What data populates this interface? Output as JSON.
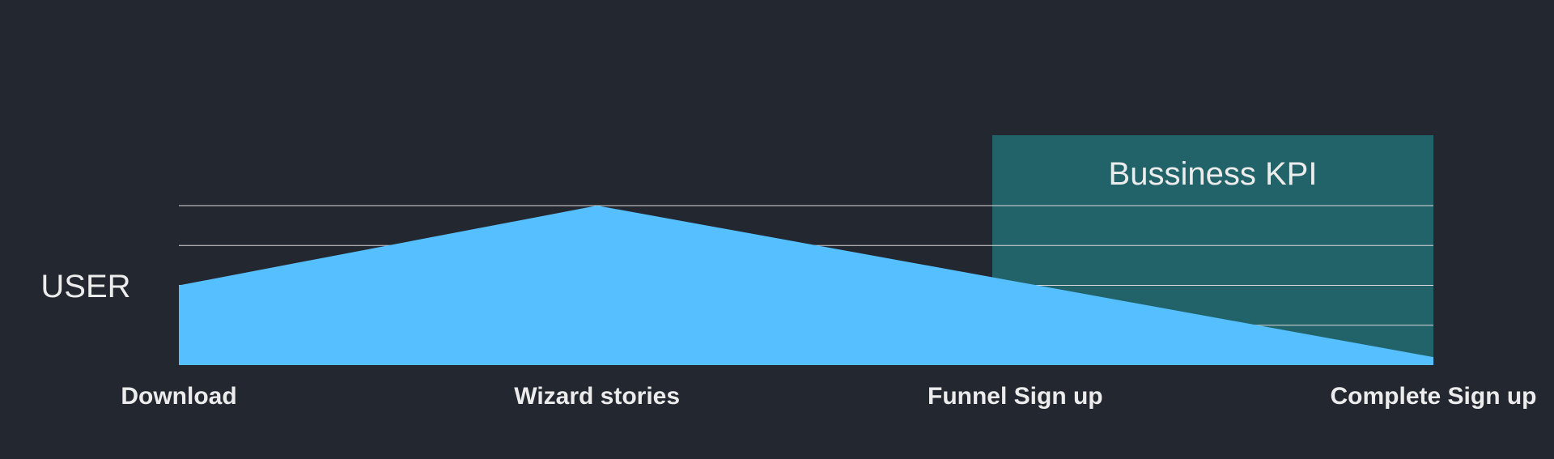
{
  "colors": {
    "background": "#232730",
    "area_fill": "#56BFFF",
    "kpi_box": "#226369",
    "gridline": "#D9D9D9",
    "text": "#ECECEC"
  },
  "chart_data": {
    "type": "area",
    "categories": [
      "Download",
      "Wizard stories",
      "Funnel Sign up",
      "Complete Sign up"
    ],
    "series": [
      {
        "values": [
          2,
          4,
          2.1,
          0.2
        ]
      }
    ],
    "ylabel": "USER",
    "ylim": [
      0,
      4
    ],
    "grid": true,
    "highlight": {
      "label": "Bussiness KPI",
      "from_category": "Funnel Sign up",
      "to_category": "Complete Sign up"
    }
  }
}
